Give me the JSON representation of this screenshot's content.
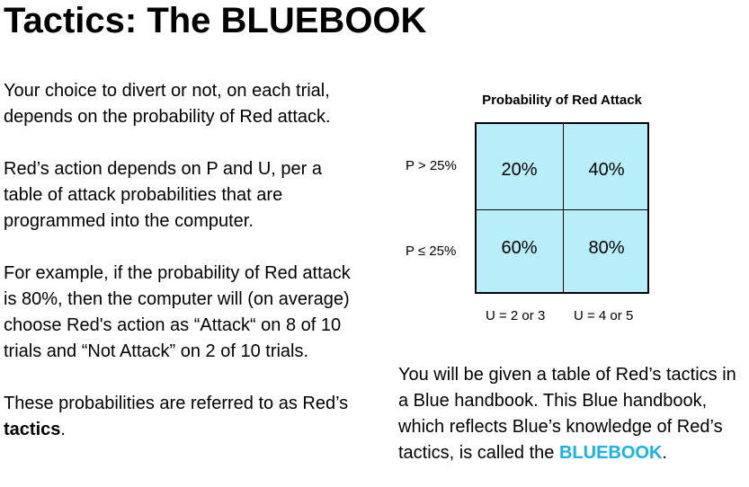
{
  "title": "Tactics: The BLUEBOOK",
  "left": {
    "p1": "Your choice to divert or not, on each trial, depends on the probability of Red attack.",
    "p2": "Red’s action depends on P and U, per a table of attack probabilities that are programmed into the computer.",
    "p3": "For example, if  the probability of Red attack is 80%, then the computer will (on average) choose Red's action as “Attack“ on 8 of 10 trials and “Not Attack” on 2 of 10 trials.",
    "p4_prefix": "These probabilities are referred to as Red’s ",
    "p4_bold": "tactics",
    "p4_suffix": "."
  },
  "table": {
    "title": "Probability of Red Attack",
    "row_labels": [
      "P > 25%",
      "P ≤ 25%"
    ],
    "col_labels": [
      "U = 2 or 3",
      "U = 4 or 5"
    ],
    "cells": [
      [
        "20%",
        "40%"
      ],
      [
        "60%",
        "80%"
      ]
    ],
    "fill_color": "#b7eefa"
  },
  "right": {
    "text_prefix": "You will be given a table of Red’s tactics in a Blue handbook. This Blue handbook, which reflects Blue’s knowledge of Red’s tactics, is called the ",
    "highlight": "BLUEBOOK",
    "text_suffix": ".",
    "highlight_color": "#1ab2e6"
  }
}
